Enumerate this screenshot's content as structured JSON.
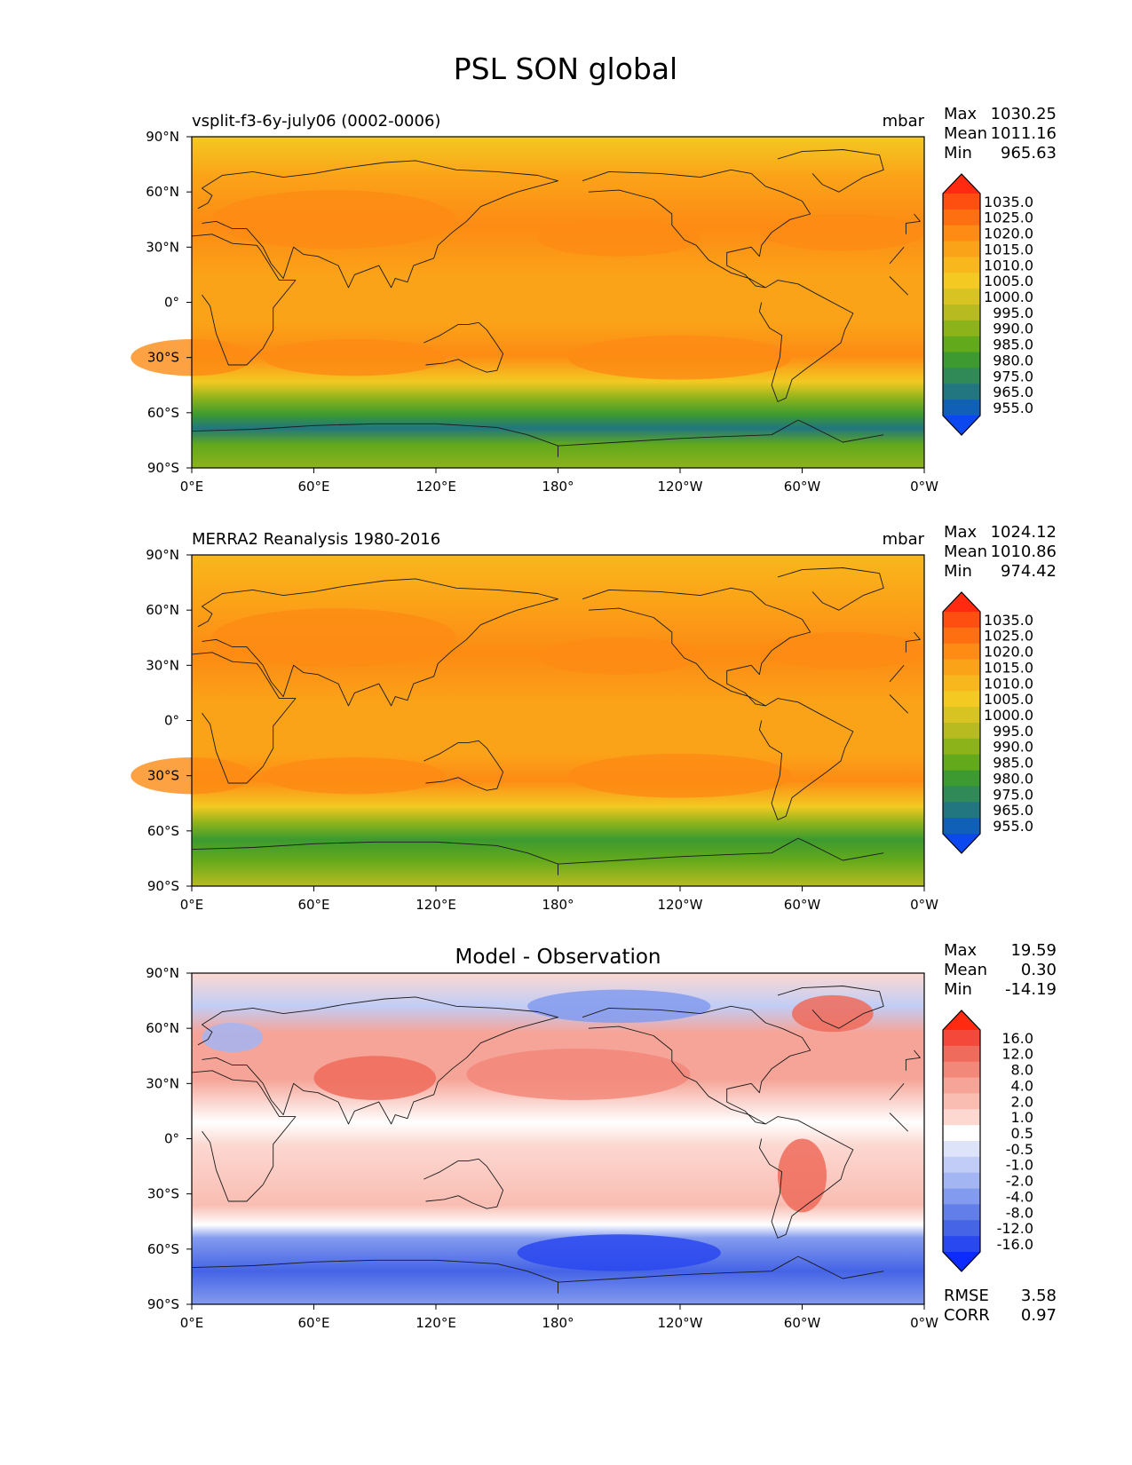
{
  "title": "PSL SON global",
  "panels": [
    {
      "id": "test",
      "left_title": "vsplit-f3-6y-july06 (0002-0006)",
      "center_title": "",
      "units": "mbar",
      "stats": [
        {
          "label": "Max",
          "value": "1030.25"
        },
        {
          "label": "Mean",
          "value": "1011.16"
        },
        {
          "label": "Min",
          "value": "965.63"
        }
      ],
      "colorbar_labels": [
        "1035.0",
        "1025.0",
        "1020.0",
        "1015.0",
        "1010.0",
        "1005.0",
        "1000.0",
        "995.0",
        "990.0",
        "985.0",
        "980.0",
        "975.0",
        "965.0",
        "955.0"
      ],
      "colorbar_colors": [
        "#ff2a0f",
        "#fe4e10",
        "#fe6f12",
        "#fd8b14",
        "#fba318",
        "#f8b71c",
        "#f3c922",
        "#d7c423",
        "#b7bb1f",
        "#8db31b",
        "#62a91c",
        "#3c9a30",
        "#2f8a57",
        "#21767f",
        "#1060b8",
        "#0c48f0"
      ],
      "regions_fill": "#fba318"
    },
    {
      "id": "ref",
      "left_title": "MERRA2 Reanalysis 1980-2016",
      "center_title": "",
      "units": "mbar",
      "stats": [
        {
          "label": "Max",
          "value": "1024.12"
        },
        {
          "label": "Mean",
          "value": "1010.86"
        },
        {
          "label": "Min",
          "value": "974.42"
        }
      ],
      "colorbar_labels": [
        "1035.0",
        "1025.0",
        "1020.0",
        "1015.0",
        "1010.0",
        "1005.0",
        "1000.0",
        "995.0",
        "990.0",
        "985.0",
        "980.0",
        "975.0",
        "965.0",
        "955.0"
      ],
      "colorbar_colors": [
        "#ff2a0f",
        "#fe4e10",
        "#fe6f12",
        "#fd8b14",
        "#fba318",
        "#f8b71c",
        "#f3c922",
        "#d7c423",
        "#b7bb1f",
        "#8db31b",
        "#62a91c",
        "#3c9a30",
        "#2f8a57",
        "#21767f",
        "#1060b8",
        "#0c48f0"
      ],
      "regions_fill": "#fba318"
    },
    {
      "id": "diff",
      "left_title": "",
      "center_title": "Model - Observation",
      "units": "",
      "stats": [
        {
          "label": "Max",
          "value": "19.59"
        },
        {
          "label": "Mean",
          "value": "0.30"
        },
        {
          "label": "Min",
          "value": "-14.19"
        }
      ],
      "colorbar_labels": [
        "16.0",
        "12.0",
        "8.0",
        "4.0",
        "2.0",
        "1.0",
        "0.5",
        "-0.5",
        "-1.0",
        "-2.0",
        "-4.0",
        "-8.0",
        "-12.0",
        "-16.0"
      ],
      "colorbar_colors": [
        "#ff2a0f",
        "#f4493a",
        "#ef6b5b",
        "#f2887a",
        "#f6a497",
        "#f9bdb2",
        "#fcd8d1",
        "#ffffff",
        "#dde4fa",
        "#c1cdf6",
        "#a3b5f2",
        "#839bee",
        "#627fe9",
        "#4564e6",
        "#2a48ef",
        "#0c2cff"
      ],
      "rmse": {
        "label": "RMSE",
        "value": "3.58"
      },
      "corr": {
        "label": "CORR",
        "value": "0.97"
      }
    }
  ],
  "lat_ticks": [
    "90°N",
    "60°N",
    "30°N",
    "0°",
    "30°S",
    "60°S",
    "90°S"
  ],
  "lon_ticks": [
    "0°E",
    "60°E",
    "120°E",
    "180°",
    "120°W",
    "60°W",
    "0°W"
  ]
}
